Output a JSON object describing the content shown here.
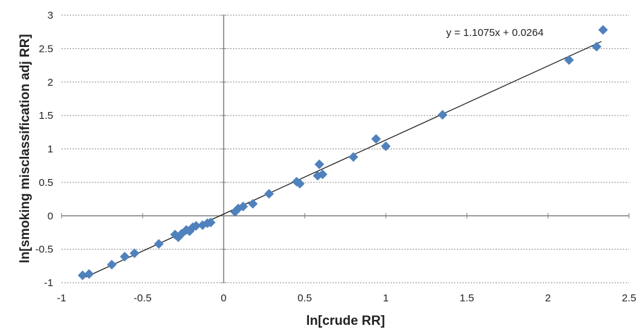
{
  "chart_data": {
    "type": "scatter",
    "xlabel": "ln[crude RR]",
    "ylabel": "ln[smoking misclassification adj RR]",
    "xlim": [
      -1,
      2.5
    ],
    "ylim": [
      -1,
      3
    ],
    "xticks": [
      -1,
      -0.5,
      0,
      0.5,
      1,
      1.5,
      2,
      2.5
    ],
    "yticks": [
      -1,
      -0.5,
      0,
      0.5,
      1,
      1.5,
      2,
      2.5,
      3
    ],
    "xtick_labels": [
      "-1",
      "-0.5",
      "0",
      "0.5",
      "1",
      "1.5",
      "2",
      "2.5"
    ],
    "ytick_labels": [
      "-1",
      "-0.5",
      "0",
      "0.5",
      "1",
      "1.5",
      "2",
      "2.5",
      "3"
    ],
    "grid": "horizontal",
    "marker_color": "#4f81bd",
    "trendline": {
      "slope": 1.1075,
      "intercept": 0.0264,
      "x_range": [
        -0.85,
        2.33
      ],
      "color": "#222222",
      "equation": "y = 1.1075x + 0.0264"
    },
    "points": [
      {
        "x": -0.87,
        "y": -0.89
      },
      {
        "x": -0.83,
        "y": -0.87
      },
      {
        "x": -0.69,
        "y": -0.73
      },
      {
        "x": -0.61,
        "y": -0.61
      },
      {
        "x": -0.55,
        "y": -0.56
      },
      {
        "x": -0.4,
        "y": -0.42
      },
      {
        "x": -0.3,
        "y": -0.28
      },
      {
        "x": -0.28,
        "y": -0.32
      },
      {
        "x": -0.26,
        "y": -0.27
      },
      {
        "x": -0.23,
        "y": -0.21
      },
      {
        "x": -0.21,
        "y": -0.23
      },
      {
        "x": -0.19,
        "y": -0.17
      },
      {
        "x": -0.17,
        "y": -0.15
      },
      {
        "x": -0.13,
        "y": -0.14
      },
      {
        "x": -0.1,
        "y": -0.11
      },
      {
        "x": -0.08,
        "y": -0.1
      },
      {
        "x": 0.07,
        "y": 0.06
      },
      {
        "x": 0.09,
        "y": 0.11
      },
      {
        "x": 0.12,
        "y": 0.14
      },
      {
        "x": 0.18,
        "y": 0.18
      },
      {
        "x": 0.28,
        "y": 0.33
      },
      {
        "x": 0.45,
        "y": 0.51
      },
      {
        "x": 0.47,
        "y": 0.48
      },
      {
        "x": 0.58,
        "y": 0.6
      },
      {
        "x": 0.59,
        "y": 0.77
      },
      {
        "x": 0.61,
        "y": 0.62
      },
      {
        "x": 0.8,
        "y": 0.88
      },
      {
        "x": 0.94,
        "y": 1.15
      },
      {
        "x": 1.0,
        "y": 1.04
      },
      {
        "x": 1.35,
        "y": 1.51
      },
      {
        "x": 2.13,
        "y": 2.33
      },
      {
        "x": 2.3,
        "y": 2.53
      },
      {
        "x": 2.34,
        "y": 2.78
      }
    ]
  }
}
